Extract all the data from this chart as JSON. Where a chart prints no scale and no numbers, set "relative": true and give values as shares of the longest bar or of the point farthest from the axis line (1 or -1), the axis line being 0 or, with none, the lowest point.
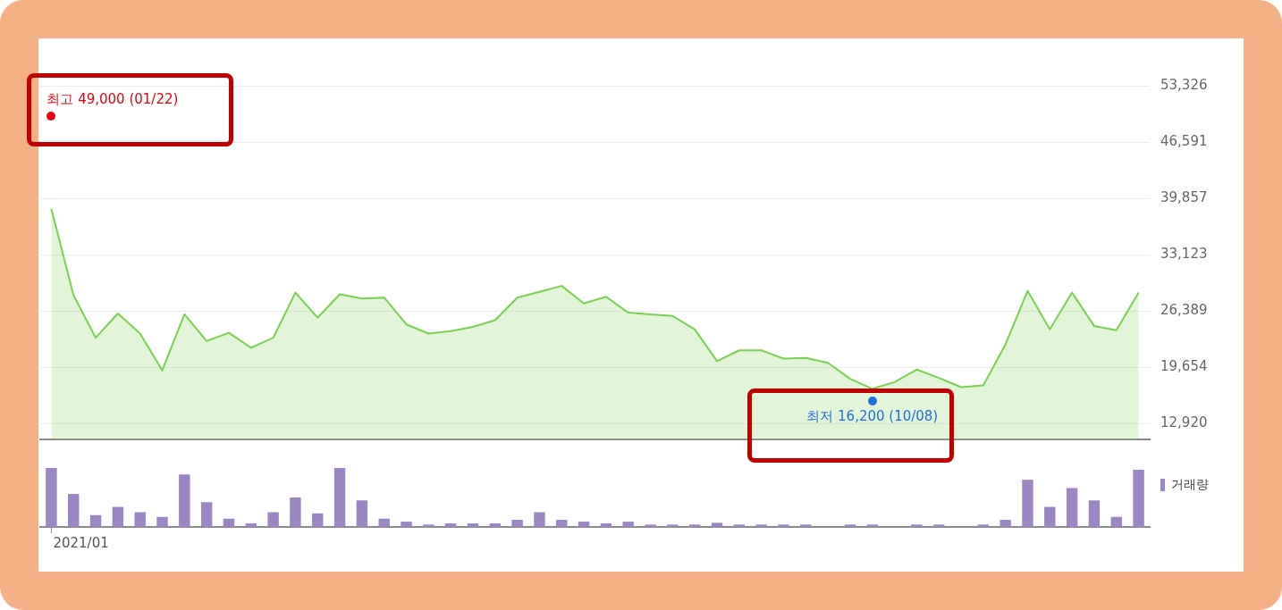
{
  "chart_data": [
    {
      "type": "area",
      "categories": [
        null,
        null,
        null,
        null,
        null,
        null,
        null,
        null,
        null,
        null,
        null,
        null,
        null,
        null,
        null,
        null,
        null,
        null,
        null,
        null,
        null,
        null,
        null,
        null,
        null,
        null,
        null,
        null,
        null,
        null,
        null,
        null,
        null,
        null,
        null,
        null,
        null,
        null,
        null,
        null,
        null,
        null,
        null,
        null,
        null,
        null,
        null,
        null,
        null,
        null
      ],
      "values": [
        38600,
        28300,
        23200,
        26100,
        23700,
        19300,
        26000,
        22800,
        23800,
        22000,
        23200,
        28600,
        25600,
        28400,
        27900,
        28000,
        24800,
        23700,
        24000,
        24500,
        25300,
        28000,
        28700,
        29400,
        27300,
        28100,
        26200,
        26000,
        25800,
        24200,
        20400,
        21700,
        21700,
        20700,
        20800,
        20200,
        18300,
        17100,
        17900,
        19400,
        18400,
        17300,
        17500,
        22400,
        28800,
        24200,
        28600,
        24600,
        24100,
        28600
      ],
      "color": "#79d24e",
      "ylim": [
        11050,
        53326
      ],
      "yticks": [
        {
          "value": 12920,
          "label": "12,920"
        },
        {
          "value": 19654,
          "label": "19,654"
        },
        {
          "value": 26389,
          "label": "26,389"
        },
        {
          "value": 33123,
          "label": "33,123"
        },
        {
          "value": 39857,
          "label": "39,857"
        },
        {
          "value": 46591,
          "label": "46,591"
        },
        {
          "value": 53326,
          "label": "53,326"
        }
      ],
      "tick_labels": "y",
      "grid": "y",
      "annotations": [
        "최고 49,000 (01/22)",
        "최저 16,200 (10/08)"
      ]
    },
    {
      "type": "bar",
      "categories": [
        null,
        null,
        null,
        null,
        null,
        null,
        null,
        null,
        null,
        null,
        null,
        null,
        null,
        null,
        null,
        null,
        null,
        null,
        null,
        null,
        null,
        null,
        null,
        null,
        null,
        null,
        null,
        null,
        null,
        null,
        null,
        null,
        null,
        null,
        null,
        null,
        null,
        null,
        null,
        null,
        null,
        null,
        null,
        null,
        null,
        null,
        null,
        null,
        null,
        null
      ],
      "relative": true,
      "series": [
        {
          "name": "거래량",
          "color": "#9b86c4",
          "values": [
            1.0,
            0.56,
            0.2,
            0.34,
            0.25,
            0.17,
            0.89,
            0.42,
            0.14,
            0.06,
            0.25,
            0.5,
            0.23,
            1.0,
            0.45,
            0.14,
            0.09,
            0.04,
            0.06,
            0.06,
            0.06,
            0.12,
            0.25,
            0.12,
            0.09,
            0.06,
            0.09,
            0.04,
            0.04,
            0.04,
            0.07,
            0.04,
            0.04,
            0.04,
            0.04,
            null,
            0.04,
            0.04,
            null,
            0.04,
            0.04,
            null,
            0.04,
            0.12,
            0.8,
            0.34,
            0.66,
            0.45,
            0.17,
            0.97
          ]
        }
      ],
      "legend": "top right",
      "annotations": [
        "2021/01"
      ]
    }
  ]
}
